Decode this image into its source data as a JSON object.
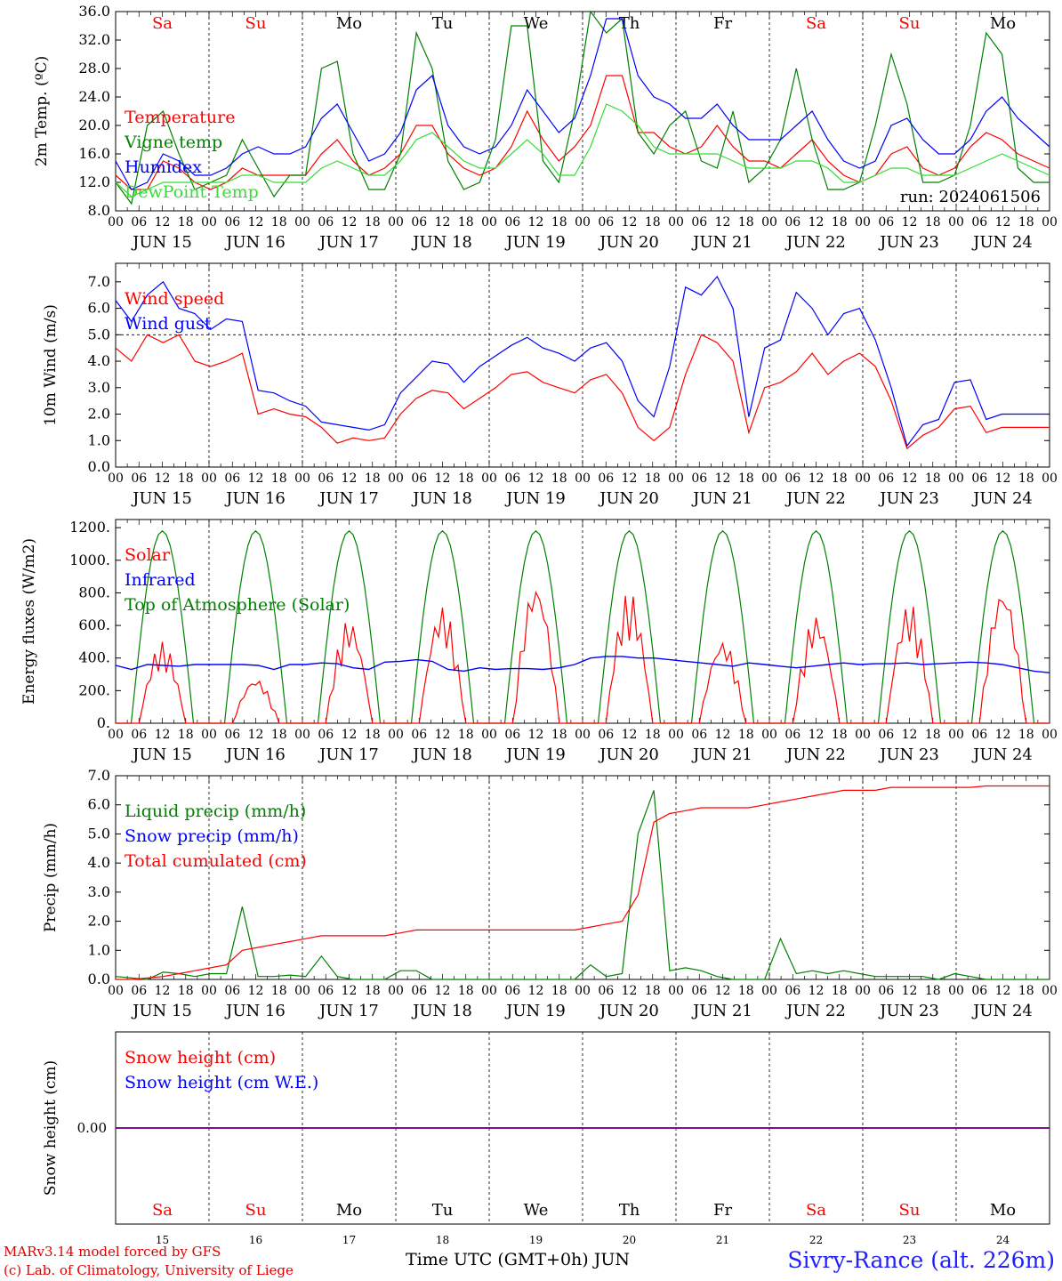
{
  "colors": {
    "red": "#ff0000",
    "green": "#008000",
    "blue": "#0000ff",
    "lightgreen": "#33dd33",
    "purple": "#800080",
    "weekend": "#ff0000",
    "weekday": "#000000"
  },
  "days": {
    "abbr": [
      "Sa",
      "Su",
      "Mo",
      "Tu",
      "We",
      "Th",
      "Fr",
      "Sa",
      "Su",
      "Mo"
    ],
    "weekend": [
      true,
      true,
      false,
      false,
      false,
      false,
      false,
      true,
      true,
      false
    ],
    "dates": [
      "JUN 15",
      "JUN 16",
      "JUN 17",
      "JUN 18",
      "JUN 19",
      "JUN 20",
      "JUN 21",
      "JUN 22",
      "JUN 23",
      "JUN 24"
    ],
    "numbers": [
      "15",
      "16",
      "17",
      "18",
      "19",
      "20",
      "21",
      "22",
      "23",
      "24"
    ],
    "hour_ticks": [
      "00",
      "06",
      "12",
      "18"
    ],
    "end_tick": "00"
  },
  "footer": {
    "credit1": "MARv3.14 model forced by GFS",
    "credit2": "(c) Lab. of Climatology, University of Liege",
    "xaxis_title": "Time UTC (GMT+0h) JUN",
    "station": "Sivry-Rance (alt. 226m)"
  },
  "chart_data": [
    {
      "id": "temp",
      "type": "line",
      "ylabel": "2m Temp. (ºC)",
      "ylim": [
        8,
        36
      ],
      "yticks": [
        "8.0",
        "12.0",
        "16.0",
        "20.0",
        "24.0",
        "28.0",
        "32.0",
        "36.0"
      ],
      "annotation": "run: 2024061506",
      "show_day_abbr": true,
      "series": [
        {
          "name": "Temperature",
          "color": "red",
          "values": [
            13,
            11,
            11,
            15,
            14,
            12,
            11,
            12,
            14,
            13,
            13,
            13,
            13,
            16,
            18,
            15,
            13,
            14,
            16,
            20,
            20,
            16,
            14,
            13,
            14,
            17,
            22,
            18,
            15,
            17,
            20,
            27,
            27,
            19,
            19,
            17,
            16,
            17,
            20,
            17,
            15,
            15,
            14,
            16,
            18,
            15,
            13,
            12,
            13,
            16,
            17,
            14,
            13,
            14,
            17,
            19,
            18,
            16,
            15,
            14
          ]
        },
        {
          "name": "Vigne temp",
          "color": "green",
          "values": [
            12,
            9,
            20,
            22,
            16,
            11,
            12,
            13,
            18,
            14,
            10,
            13,
            13,
            28,
            29,
            16,
            11,
            11,
            16,
            33,
            28,
            15,
            11,
            12,
            18,
            34,
            34,
            15,
            12,
            22,
            36,
            33,
            35,
            19,
            16,
            20,
            22,
            15,
            14,
            22,
            12,
            14,
            18,
            28,
            18,
            11,
            11,
            12,
            20,
            30,
            23,
            12,
            12,
            13,
            20,
            33,
            30,
            14,
            12,
            12
          ]
        },
        {
          "name": "Humidex",
          "color": "blue",
          "values": [
            15,
            11,
            12,
            16,
            15,
            13,
            13,
            14,
            16,
            17,
            16,
            16,
            17,
            21,
            23,
            19,
            15,
            16,
            19,
            25,
            27,
            20,
            17,
            16,
            17,
            20,
            25,
            22,
            19,
            21,
            27,
            35,
            35,
            27,
            24,
            23,
            21,
            21,
            23,
            20,
            18,
            18,
            18,
            20,
            22,
            18,
            15,
            14,
            15,
            20,
            21,
            18,
            16,
            16,
            18,
            22,
            24,
            21,
            19,
            17
          ]
        },
        {
          "name": "DewPoint Temp",
          "color": "lightgreen",
          "values": [
            12,
            10,
            11,
            12,
            12,
            12,
            12,
            12,
            13,
            13,
            12,
            12,
            12,
            14,
            15,
            14,
            13,
            13,
            15,
            18,
            19,
            17,
            15,
            14,
            14,
            16,
            18,
            16,
            13,
            13,
            17,
            23,
            22,
            20,
            17,
            16,
            16,
            16,
            16,
            15,
            14,
            14,
            14,
            15,
            15,
            14,
            12,
            12,
            13,
            14,
            14,
            13,
            13,
            13,
            14,
            15,
            16,
            15,
            14,
            13
          ]
        }
      ]
    },
    {
      "id": "wind",
      "type": "line",
      "ylabel": "10m Wind (m/s)",
      "ylim": [
        0,
        7.7
      ],
      "refline": 5.0,
      "yticks": [
        "0.0",
        "1.0",
        "2.0",
        "3.0",
        "4.0",
        "5.0",
        "6.0",
        "7.0"
      ],
      "show_day_abbr": false,
      "series": [
        {
          "name": "Wind speed",
          "color": "red",
          "values": [
            4.5,
            4.0,
            5.0,
            4.7,
            5.0,
            4.0,
            3.8,
            4.0,
            4.3,
            2.0,
            2.2,
            2.0,
            1.9,
            1.5,
            0.9,
            1.1,
            1.0,
            1.1,
            2.0,
            2.6,
            2.9,
            2.8,
            2.2,
            2.6,
            3.0,
            3.5,
            3.6,
            3.2,
            3.0,
            2.8,
            3.3,
            3.5,
            2.8,
            1.5,
            1.0,
            1.5,
            3.5,
            5.0,
            4.7,
            4.0,
            1.3,
            3.0,
            3.2,
            3.6,
            4.3,
            3.5,
            4.0,
            4.3,
            3.8,
            2.5,
            0.7,
            1.2,
            1.5,
            2.2,
            2.3,
            1.3,
            1.5,
            1.5,
            1.5,
            1.5
          ]
        },
        {
          "name": "Wind gust",
          "color": "blue",
          "values": [
            6.3,
            5.5,
            6.5,
            7.0,
            6.0,
            5.8,
            5.2,
            5.6,
            5.5,
            2.9,
            2.8,
            2.5,
            2.3,
            1.7,
            1.6,
            1.5,
            1.4,
            1.6,
            2.8,
            3.4,
            4.0,
            3.9,
            3.2,
            3.8,
            4.2,
            4.6,
            4.9,
            4.5,
            4.3,
            4.0,
            4.5,
            4.7,
            4.0,
            2.5,
            1.9,
            3.8,
            6.8,
            6.5,
            7.2,
            6.0,
            1.9,
            4.5,
            4.8,
            6.6,
            6.0,
            5.0,
            5.8,
            6.0,
            4.8,
            3.0,
            0.8,
            1.6,
            1.8,
            3.2,
            3.3,
            1.8,
            2.0,
            2.0,
            2.0,
            2.0
          ]
        }
      ]
    },
    {
      "id": "energy",
      "type": "line",
      "ylabel": "Energy fluxes (W/m2)",
      "ylim": [
        0,
        1250
      ],
      "yticks": [
        "0.",
        "200.",
        "400.",
        "600.",
        "800.",
        "1000.",
        "1200."
      ],
      "show_day_abbr": false,
      "solar_peaks": [
        500,
        280,
        640,
        720,
        880,
        810,
        520,
        670,
        740,
        850
      ],
      "series": [
        {
          "name": "Solar",
          "color": "red"
        },
        {
          "name": "Infrared",
          "color": "blue",
          "values": [
            355,
            330,
            360,
            355,
            350,
            360,
            360,
            360,
            360,
            355,
            330,
            360,
            360,
            370,
            365,
            340,
            330,
            375,
            380,
            390,
            380,
            330,
            320,
            340,
            330,
            335,
            335,
            330,
            340,
            360,
            400,
            410,
            410,
            400,
            400,
            390,
            380,
            370,
            360,
            350,
            370,
            360,
            350,
            340,
            350,
            360,
            370,
            360,
            365,
            365,
            370,
            360,
            365,
            370,
            375,
            370,
            360,
            340,
            320,
            310
          ]
        },
        {
          "name": "Top of Atmosphere (Solar)",
          "color": "green",
          "peak": 1180
        }
      ]
    },
    {
      "id": "precip",
      "type": "line",
      "ylabel": "Precip (mm/h)",
      "ylim": [
        0,
        7
      ],
      "yticks": [
        "0.0",
        "1.0",
        "2.0",
        "3.0",
        "4.0",
        "5.0",
        "6.0",
        "7.0"
      ],
      "show_day_abbr": false,
      "series": [
        {
          "name": "Liquid precip (mm/h)",
          "color": "green",
          "values": [
            0.1,
            0.05,
            0.0,
            0.25,
            0.2,
            0.1,
            0.2,
            0.2,
            2.5,
            0.1,
            0.1,
            0.15,
            0.1,
            0.8,
            0.1,
            0.0,
            0.0,
            0.0,
            0.3,
            0.3,
            0.0,
            0.0,
            0.0,
            0.0,
            0.0,
            0.0,
            0.0,
            0.0,
            0.0,
            0.0,
            0.5,
            0.1,
            0.2,
            5.0,
            6.5,
            0.3,
            0.4,
            0.3,
            0.1,
            0.0,
            0.0,
            0.0,
            1.4,
            0.2,
            0.3,
            0.2,
            0.3,
            0.2,
            0.1,
            0.1,
            0.1,
            0.1,
            0.0,
            0.2,
            0.1,
            0.0,
            0.0,
            0.0,
            0.0,
            0.0
          ]
        },
        {
          "name": "Snow precip (mm/h)",
          "color": "blue",
          "values": []
        },
        {
          "name": "Total cumulated (cm)",
          "color": "red",
          "values": [
            0.0,
            0.0,
            0.05,
            0.1,
            0.2,
            0.3,
            0.4,
            0.5,
            1.0,
            1.1,
            1.2,
            1.3,
            1.4,
            1.5,
            1.5,
            1.5,
            1.5,
            1.5,
            1.6,
            1.7,
            1.7,
            1.7,
            1.7,
            1.7,
            1.7,
            1.7,
            1.7,
            1.7,
            1.7,
            1.7,
            1.8,
            1.9,
            2.0,
            2.9,
            5.4,
            5.7,
            5.8,
            5.9,
            5.9,
            5.9,
            5.9,
            6.0,
            6.1,
            6.2,
            6.3,
            6.4,
            6.5,
            6.5,
            6.5,
            6.6,
            6.6,
            6.6,
            6.6,
            6.6,
            6.6,
            6.65,
            6.65,
            6.65,
            6.65,
            6.65
          ]
        }
      ]
    },
    {
      "id": "snow",
      "type": "line",
      "ylabel": "Snow height (cm)",
      "ylim": [
        -1,
        1
      ],
      "yticks": [
        "0.00"
      ],
      "show_day_abbr": false,
      "series": [
        {
          "name": "Snow height (cm)",
          "color": "red",
          "values": [
            0,
            0
          ]
        },
        {
          "name": "Snow height (cm W.E.)",
          "color": "blue",
          "values": [
            0,
            0
          ]
        }
      ]
    }
  ]
}
